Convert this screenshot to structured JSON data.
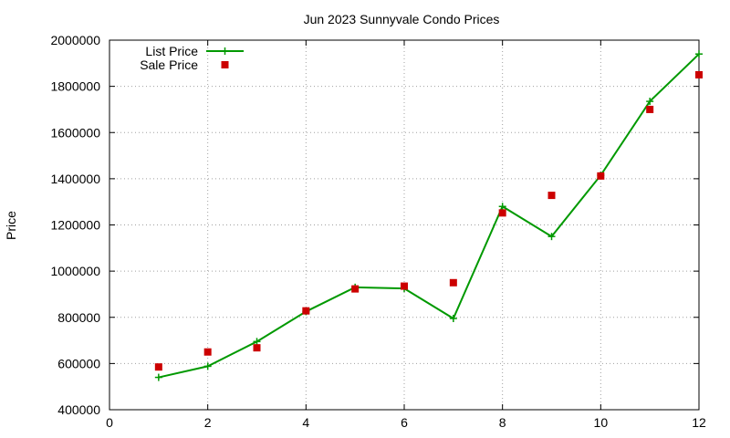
{
  "chart_data": {
    "type": "line",
    "title": "Jun 2023 Sunnyvale Condo Prices",
    "xlabel": "",
    "ylabel": "Price",
    "xlim": [
      0,
      12
    ],
    "ylim": [
      400000,
      2000000
    ],
    "x_ticks": [
      "0",
      "2",
      "4",
      "6",
      "8",
      "10",
      "12"
    ],
    "y_ticks": [
      "400000",
      "600000",
      "800000",
      "1000000",
      "1200000",
      "1400000",
      "1600000",
      "1800000",
      "2000000"
    ],
    "grid": true,
    "legend_position": "top-left",
    "series": [
      {
        "name": "List Price",
        "style": "linespoints",
        "marker": "plus",
        "color": "#009900",
        "x": [
          1,
          2,
          3,
          4,
          5,
          6,
          7,
          8,
          9,
          10,
          11,
          12
        ],
        "y": [
          540000,
          588000,
          695000,
          825000,
          930000,
          925000,
          795000,
          1280000,
          1150000,
          1415000,
          1735000,
          1940000
        ]
      },
      {
        "name": "Sale Price",
        "style": "points",
        "marker": "square",
        "color": "#cc0000",
        "x": [
          1,
          2,
          3,
          4,
          5,
          6,
          7,
          8,
          9,
          10,
          11,
          12
        ],
        "y": [
          585000,
          650000,
          668000,
          828000,
          923000,
          935000,
          950000,
          1252000,
          1328000,
          1412000,
          1700000,
          1850000
        ]
      }
    ]
  }
}
